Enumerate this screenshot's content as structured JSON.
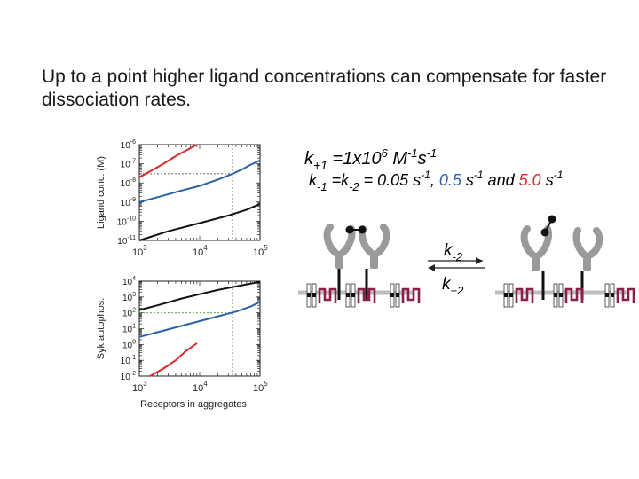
{
  "slide": {
    "title": "Up to a point higher ligand concentrations can compensate for faster dissociation rates."
  },
  "colors": {
    "black_curve": "#111111",
    "blue_curve": "#2a62a6",
    "red_curve": "#d42a2a",
    "green_dashed": "#3a9a3a",
    "membrane": "#bdbdbd",
    "kinase": "#8b1f4a",
    "receptor": "#9a9a9a"
  },
  "equations": {
    "line1": {
      "k": "k",
      "sub1": "+1",
      "rest": " =1x10",
      "exp": "6",
      "unit": " M",
      "unit_exp": "-1",
      "s": "s",
      "s_exp": "-1"
    },
    "line2": {
      "k": "k",
      "sub1": "-1",
      "eq": " =k",
      "sub2": "-2",
      "val": " = 0.05 s",
      "exp1": "-1",
      "comma": ", ",
      "blue_val": "0.5",
      "s2": " s",
      "exp2": "-1",
      "and": " and ",
      "red_val": "5.0",
      "s3": " s",
      "exp3": "-1"
    }
  },
  "reaction": {
    "forward": {
      "k": "k",
      "sub": "-2"
    },
    "reverse": {
      "k": "k",
      "sub": "+2"
    }
  },
  "chart_data": [
    {
      "type": "line",
      "ylabel": "Ligand conc. (M)",
      "xlabel": "",
      "x_scale": "log",
      "y_scale": "log",
      "xlim": [
        1000,
        100000
      ],
      "ylim": [
        1e-11,
        1e-06
      ],
      "x_ticks": [
        {
          "base": "10",
          "exp": "3"
        },
        {
          "base": "10",
          "exp": "4"
        },
        {
          "base": "10",
          "exp": "5"
        }
      ],
      "y_ticks": [
        {
          "base": "10",
          "exp": "-6"
        },
        {
          "base": "10",
          "exp": "-7"
        },
        {
          "base": "10",
          "exp": "-8"
        },
        {
          "base": "10",
          "exp": "-9"
        },
        {
          "base": "10",
          "exp": "-10"
        },
        {
          "base": "10",
          "exp": "-11"
        }
      ],
      "series": [
        {
          "color": "#d42a2a",
          "x": [
            1000,
            1500,
            2500,
            4000,
            6000,
            9000
          ],
          "y": [
            2e-08,
            4e-08,
            1e-07,
            2.5e-07,
            5e-07,
            1e-06
          ]
        },
        {
          "color": "#2a62a6",
          "x": [
            1000,
            2000,
            5000,
            10000,
            20000,
            35000,
            50000,
            70000,
            100000
          ],
          "y": [
            1e-09,
            1.8e-09,
            4e-09,
            7e-09,
            1.5e-08,
            3e-08,
            5e-08,
            9e-08,
            1.5e-07
          ]
        },
        {
          "color": "#111111",
          "x": [
            1000,
            3000,
            10000,
            30000,
            60000,
            100000
          ],
          "y": [
            1e-11,
            3e-11,
            8e-11,
            2e-10,
            4e-10,
            8e-10
          ]
        }
      ],
      "reference_lines": [
        {
          "orientation": "horizontal",
          "y": 3e-08,
          "color": "#333333"
        },
        {
          "orientation": "vertical",
          "x": 35000,
          "color": "#555555"
        }
      ]
    },
    {
      "type": "line",
      "ylabel": "Syk autophos.",
      "xlabel": "Receptors in aggregates",
      "x_scale": "log",
      "y_scale": "log",
      "xlim": [
        1000,
        100000
      ],
      "ylim": [
        0.01,
        10000
      ],
      "x_ticks": [
        {
          "base": "10",
          "exp": "3"
        },
        {
          "base": "10",
          "exp": "4"
        },
        {
          "base": "10",
          "exp": "5"
        }
      ],
      "y_ticks": [
        {
          "base": "10",
          "exp": "4"
        },
        {
          "base": "10",
          "exp": "3"
        },
        {
          "base": "10",
          "exp": "2"
        },
        {
          "base": "10",
          "exp": "1"
        },
        {
          "base": "10",
          "exp": "0"
        },
        {
          "base": "10",
          "exp": "-1"
        },
        {
          "base": "10",
          "exp": "-2"
        }
      ],
      "series": [
        {
          "color": "#111111",
          "x": [
            1000,
            2000,
            5000,
            10000,
            20000,
            50000,
            100000
          ],
          "y": [
            150,
            300,
            800,
            1500,
            2800,
            5500,
            9000
          ]
        },
        {
          "color": "#2a62a6",
          "x": [
            1000,
            2000,
            5000,
            10000,
            20000,
            40000,
            70000,
            100000
          ],
          "y": [
            3,
            6,
            15,
            30,
            60,
            120,
            250,
            500
          ]
        },
        {
          "color": "#d42a2a",
          "x": [
            1500,
            2500,
            4000,
            6000,
            9000
          ],
          "y": [
            0.01,
            0.03,
            0.1,
            0.4,
            1.2
          ]
        }
      ],
      "reference_lines": [
        {
          "orientation": "horizontal",
          "y": 100,
          "color": "#3a9a3a"
        },
        {
          "orientation": "vertical",
          "x": 35000,
          "color": "#555555"
        }
      ]
    }
  ]
}
